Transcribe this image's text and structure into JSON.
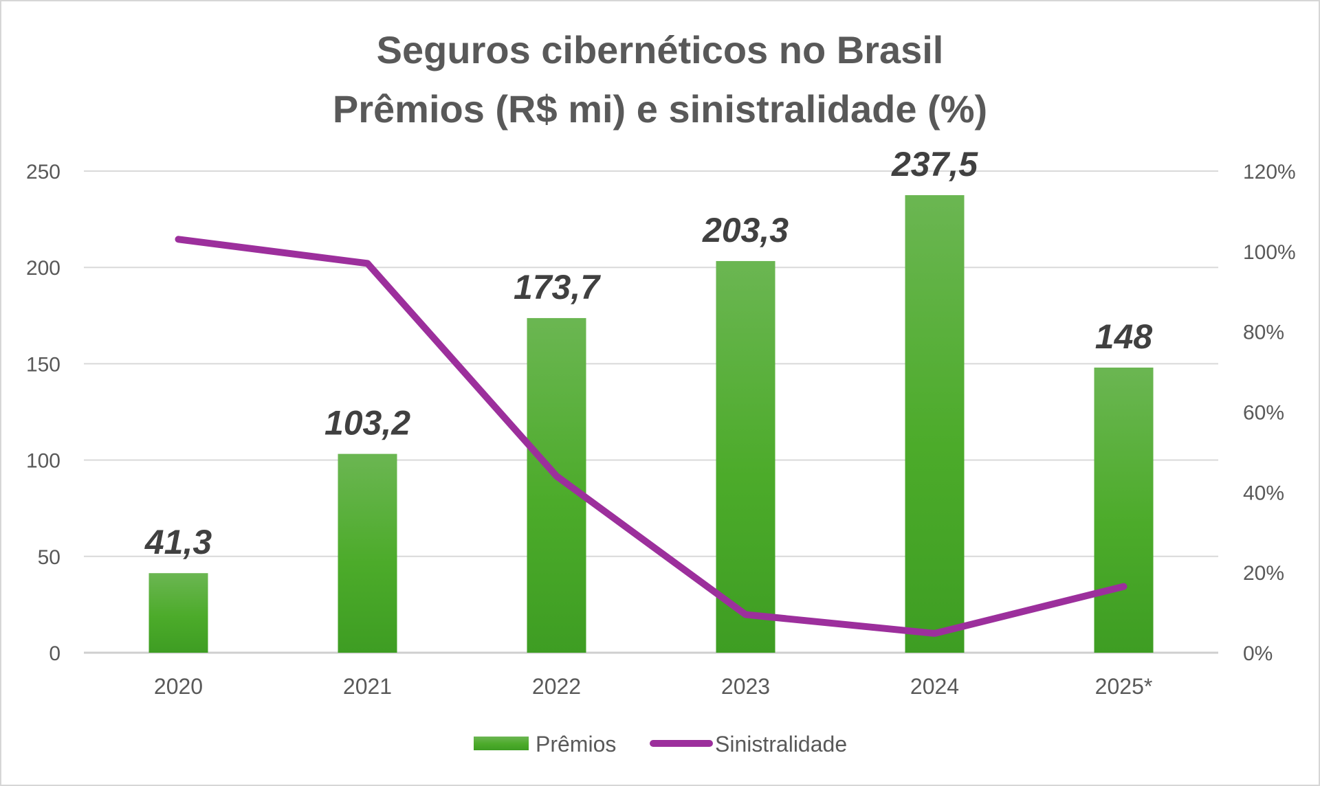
{
  "chart_data": {
    "type": "bar",
    "title": [
      "Seguros cibernéticos no Brasil",
      "Prêmios (R$ mi) e sinistralidade (%)"
    ],
    "categories": [
      "2020",
      "2021",
      "2022",
      "2023",
      "2024",
      "2025*"
    ],
    "series": [
      {
        "name": "Prêmios",
        "type": "bar",
        "axis": "left",
        "values": [
          41.3,
          103.2,
          173.7,
          203.3,
          237.5,
          148
        ],
        "labels": [
          "41,3",
          "103,2",
          "173,7",
          "203,3",
          "237,5",
          "148"
        ],
        "color": "#4CAF2E"
      },
      {
        "name": "Sinistralidade",
        "type": "line",
        "axis": "right",
        "values": [
          103,
          97,
          44,
          9.5,
          4.8,
          16.5
        ],
        "unit": "%",
        "color": "#9C2F9C"
      }
    ],
    "y_left": {
      "min": 0,
      "max": 250,
      "ticks": [
        "0",
        "50",
        "100",
        "150",
        "200",
        "250"
      ]
    },
    "y_right": {
      "min": 0,
      "max": 120,
      "ticks": [
        "0%",
        "20%",
        "40%",
        "60%",
        "80%",
        "100%",
        "120%"
      ]
    },
    "grid": true,
    "legend": "bottom-center"
  }
}
